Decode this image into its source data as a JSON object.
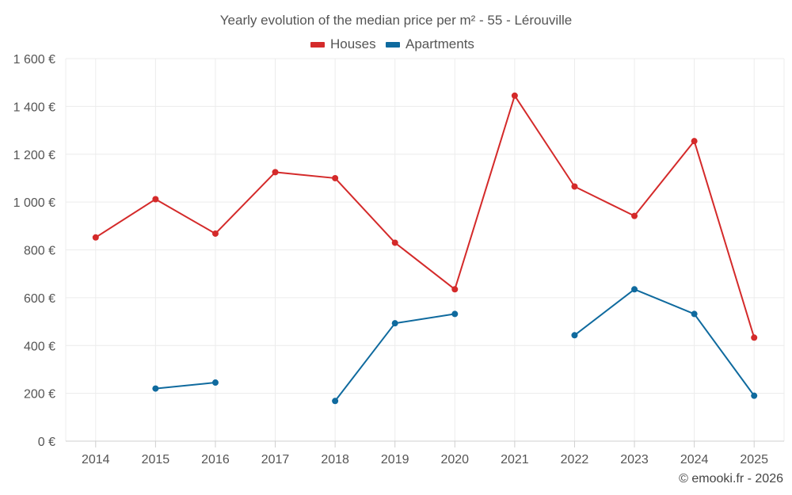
{
  "chart_data": {
    "type": "line",
    "title": "Yearly evolution of the median price per m² - 55 - Lérouville",
    "categories": [
      "2014",
      "2015",
      "2016",
      "2017",
      "2018",
      "2019",
      "2020",
      "2021",
      "2022",
      "2023",
      "2024",
      "2025"
    ],
    "series": [
      {
        "name": "Houses",
        "color": "#d42a2a",
        "values": [
          852,
          1012,
          868,
          1125,
          1100,
          830,
          635,
          1445,
          1065,
          942,
          1255,
          433
        ]
      },
      {
        "name": "Apartments",
        "color": "#0f6a9e",
        "values": [
          null,
          220,
          245,
          null,
          168,
          493,
          532,
          null,
          443,
          635,
          532,
          190
        ]
      }
    ],
    "ylim": [
      0,
      1600
    ],
    "yticks": [
      0,
      200,
      400,
      600,
      800,
      1000,
      1200,
      1400,
      1600
    ],
    "ytick_labels": [
      "0 €",
      "200 €",
      "400 €",
      "600 €",
      "800 €",
      "1 000 €",
      "1 200 €",
      "1 400 €",
      "1 600 €"
    ],
    "xlabel": "",
    "ylabel": "",
    "grid": true,
    "legend": "top-center"
  },
  "credit": "© emooki.fr - 2026"
}
